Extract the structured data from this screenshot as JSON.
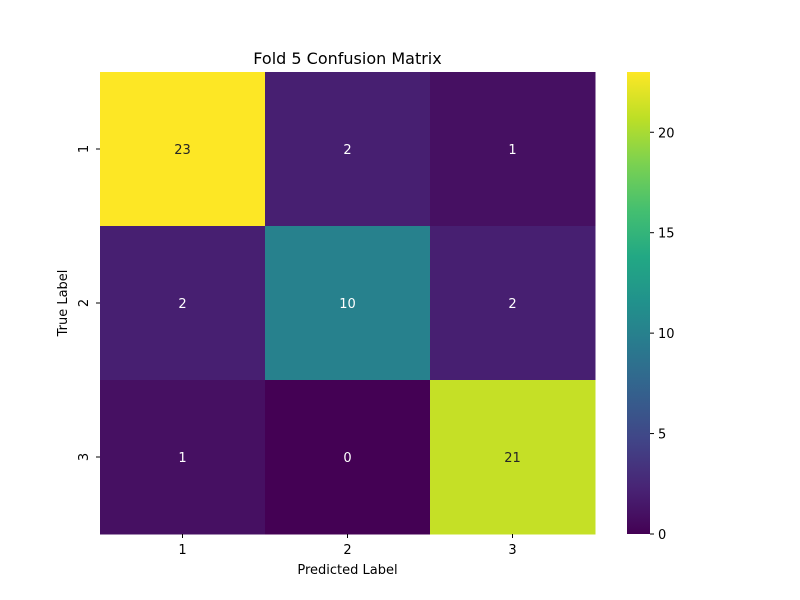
{
  "chart_data": {
    "type": "heatmap",
    "title": "Fold 5 Confusion Matrix",
    "xlabel": "Predicted Label",
    "ylabel": "True Label",
    "x_categories": [
      "1",
      "2",
      "3"
    ],
    "y_categories": [
      "1",
      "2",
      "3"
    ],
    "values": [
      [
        23,
        2,
        1
      ],
      [
        2,
        10,
        2
      ],
      [
        1,
        0,
        21
      ]
    ],
    "colormap": "viridis",
    "colorbar": {
      "min": 0,
      "max": 23,
      "ticks": [
        0,
        5,
        10,
        15,
        20
      ]
    },
    "annotated": true,
    "grid": false
  }
}
